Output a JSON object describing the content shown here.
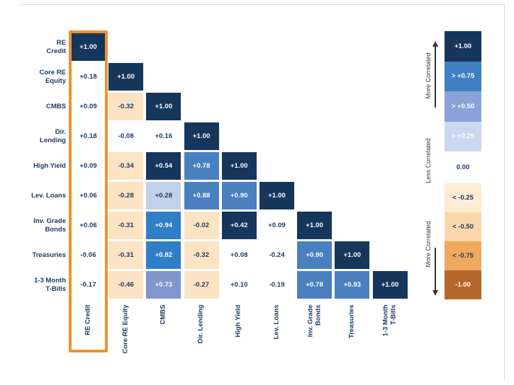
{
  "tones": {
    "navy": {
      "bg": "#16365c",
      "fg": "#ffffff"
    },
    "bright": {
      "bg": "#2f7ec8",
      "fg": "#ffffff"
    },
    "medium": {
      "bg": "#4a80bf",
      "fg": "#ffffff"
    },
    "peri": {
      "bg": "#8097cc",
      "fg": "#ffffff"
    },
    "lightperi": {
      "bg": "#c3d0ea",
      "fg": "#1f3a60"
    },
    "cream": {
      "bg": "#fce3c4",
      "fg": "#1f3a60"
    },
    "white": {
      "bg": "transparent",
      "fg": "#1f3a60"
    }
  },
  "highlight_color": "#ee9231",
  "chart_data": {
    "type": "heatmap",
    "description": "Lower-triangular asset-class correlation matrix with RE Credit column highlighted",
    "categories": [
      "RE Credit",
      "Core RE Equity",
      "CMBS",
      "Dir. Lending",
      "High Yield",
      "Lev. Loans",
      "Inv. Grade Bonds",
      "Treasuries",
      "1-3 Month T-Bills"
    ],
    "values": [
      [
        1.0
      ],
      [
        0.18,
        1.0
      ],
      [
        0.09,
        -0.32,
        1.0
      ],
      [
        0.18,
        -0.08,
        0.16,
        1.0
      ],
      [
        0.09,
        -0.34,
        0.54,
        0.78,
        1.0
      ],
      [
        0.06,
        -0.28,
        0.28,
        0.88,
        0.9,
        1.0
      ],
      [
        0.06,
        -0.31,
        0.94,
        -0.02,
        0.42,
        0.09,
        1.0
      ],
      [
        -0.06,
        -0.31,
        0.82,
        -0.32,
        0.08,
        -0.24,
        0.9,
        1.0
      ],
      [
        -0.17,
        -0.46,
        0.73,
        -0.27,
        0.1,
        -0.19,
        0.78,
        0.93,
        1.0
      ]
    ],
    "highlighted_column": "RE Credit",
    "rows": [
      {
        "label": "RE\nCredit",
        "cells": [
          {
            "v": "+1.00",
            "tone": "navy"
          }
        ]
      },
      {
        "label": "Core RE\nEquity",
        "cells": [
          {
            "v": "+0.18",
            "tone": "white"
          },
          {
            "v": "+1.00",
            "tone": "navy"
          }
        ]
      },
      {
        "label": "CMBS",
        "cells": [
          {
            "v": "+0.09",
            "tone": "white"
          },
          {
            "v": "-0.32",
            "tone": "cream"
          },
          {
            "v": "+1.00",
            "tone": "navy"
          }
        ]
      },
      {
        "label": "Dir.\nLending",
        "cells": [
          {
            "v": "+0.18",
            "tone": "white"
          },
          {
            "v": "-0.08",
            "tone": "white"
          },
          {
            "v": "+0.16",
            "tone": "white"
          },
          {
            "v": "+1.00",
            "tone": "navy"
          }
        ]
      },
      {
        "label": "High Yield",
        "cells": [
          {
            "v": "+0.09",
            "tone": "white"
          },
          {
            "v": "-0.34",
            "tone": "cream"
          },
          {
            "v": "+0.54",
            "tone": "navy"
          },
          {
            "v": "+0.78",
            "tone": "medium"
          },
          {
            "v": "+1.00",
            "tone": "navy"
          }
        ]
      },
      {
        "label": "Lev. Loans",
        "cells": [
          {
            "v": "+0.06",
            "tone": "white"
          },
          {
            "v": "-0.28",
            "tone": "cream"
          },
          {
            "v": "+0.28",
            "tone": "lightperi"
          },
          {
            "v": "+0.88",
            "tone": "medium"
          },
          {
            "v": "+0.90",
            "tone": "medium"
          },
          {
            "v": "+1.00",
            "tone": "navy"
          }
        ]
      },
      {
        "label": "Inv. Grade\nBonds",
        "cells": [
          {
            "v": "+0.06",
            "tone": "white"
          },
          {
            "v": "-0.31",
            "tone": "cream"
          },
          {
            "v": "+0.94",
            "tone": "bright"
          },
          {
            "v": "-0.02",
            "tone": "cream"
          },
          {
            "v": "+0.42",
            "tone": "navy"
          },
          {
            "v": "+0.09",
            "tone": "white"
          },
          {
            "v": "+1.00",
            "tone": "navy"
          }
        ]
      },
      {
        "label": "Treasuries",
        "cells": [
          {
            "v": "-0.06",
            "tone": "white"
          },
          {
            "v": "-0.31",
            "tone": "cream"
          },
          {
            "v": "+0.82",
            "tone": "bright"
          },
          {
            "v": "-0.32",
            "tone": "cream"
          },
          {
            "v": "+0.08",
            "tone": "white"
          },
          {
            "v": "-0.24",
            "tone": "white"
          },
          {
            "v": "+0.90",
            "tone": "medium"
          },
          {
            "v": "+1.00",
            "tone": "navy"
          }
        ]
      },
      {
        "label": "1-3 Month\nT-Bills",
        "cells": [
          {
            "v": "-0.17",
            "tone": "white"
          },
          {
            "v": "-0.46",
            "tone": "cream"
          },
          {
            "v": "+0.73",
            "tone": "peri"
          },
          {
            "v": "-0.27",
            "tone": "cream"
          },
          {
            "v": "+0.10",
            "tone": "white"
          },
          {
            "v": "-0.19",
            "tone": "white"
          },
          {
            "v": "+0.78",
            "tone": "medium"
          },
          {
            "v": "+0.93",
            "tone": "medium"
          },
          {
            "v": "+1.00",
            "tone": "navy"
          }
        ]
      }
    ],
    "column_labels": [
      "RE Credit",
      "Core RE Equity",
      "CMBS",
      "Dir. Lending",
      "High Yield",
      "Lev. Loans",
      "Inv. Grade\nBonds",
      "Treasuries",
      "1-3 Month\nT-Bills"
    ],
    "legend": {
      "entries": [
        {
          "label": "+1.00",
          "bg": "#16365c",
          "fg": "#ffffff"
        },
        {
          "label": "> +0.75",
          "bg": "#3f80c4",
          "fg": "#ffffff"
        },
        {
          "label": "> +0.50",
          "bg": "#8ba3d6",
          "fg": "#ffffff"
        },
        {
          "label": "> +0.25",
          "bg": "#ccd7ef",
          "fg": "#ffffff"
        },
        {
          "label": "0.00",
          "bg": null,
          "fg": "#1f3a60"
        },
        {
          "label": "< -0.25",
          "bg": "#fdebd3",
          "fg": "#1f3a60"
        },
        {
          "label": "< -0.50",
          "bg": "#fbd8ab",
          "fg": "#1f3a60"
        },
        {
          "label": "< -0.75",
          "bg": "#f1a95d",
          "fg": "#1f3a60"
        },
        {
          "label": "-1.00",
          "bg": "#b4672a",
          "fg": "#ffffff"
        }
      ],
      "side_labels": {
        "top": "More Correlated",
        "middle": "Less Correlated",
        "bottom": "More Correlated"
      }
    }
  }
}
